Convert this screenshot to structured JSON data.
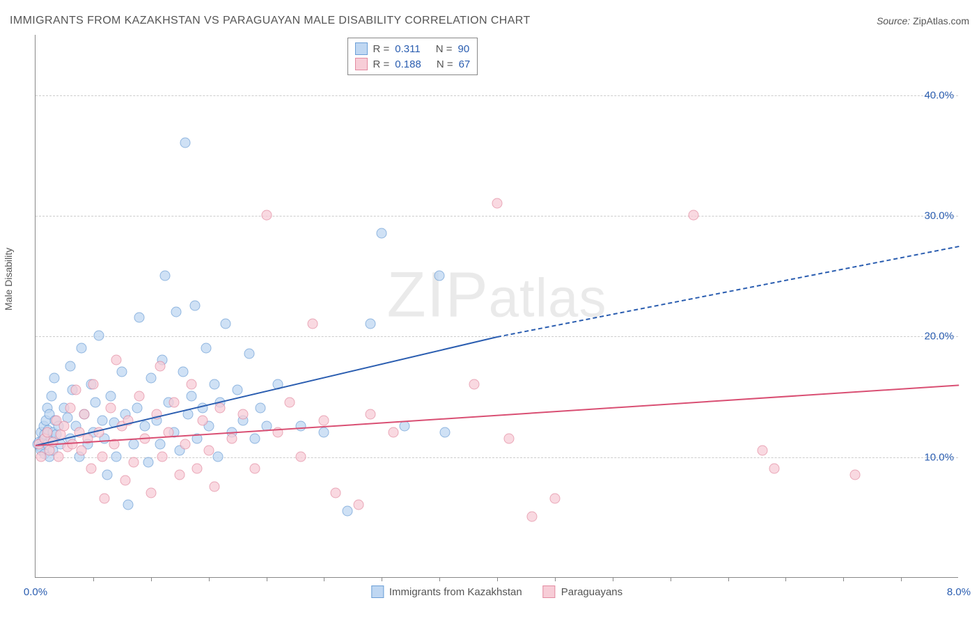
{
  "title": "IMMIGRANTS FROM KAZAKHSTAN VS PARAGUAYAN MALE DISABILITY CORRELATION CHART",
  "source_label": "Source:",
  "source_value": "ZipAtlas.com",
  "ylabel": "Male Disability",
  "watermark": "ZIPatlas",
  "chart": {
    "type": "scatter",
    "xlim": [
      0,
      8.0
    ],
    "ylim": [
      0,
      45
    ],
    "x_ticks": [
      {
        "v": 0.0,
        "label": "0.0%"
      },
      {
        "v": 8.0,
        "label": "8.0%"
      }
    ],
    "x_minor_ticks": [
      0.5,
      1.0,
      1.5,
      2.0,
      2.5,
      3.0,
      3.5,
      4.0,
      4.5,
      5.0,
      5.5,
      6.0,
      6.5,
      7.0,
      7.5
    ],
    "y_ticks": [
      {
        "v": 10,
        "label": "10.0%"
      },
      {
        "v": 20,
        "label": "20.0%"
      },
      {
        "v": 30,
        "label": "30.0%"
      },
      {
        "v": 40,
        "label": "40.0%"
      }
    ],
    "background_color": "#ffffff",
    "grid_color": "#cccccc",
    "series": [
      {
        "key": "kazakhstan",
        "label": "Immigrants from Kazakhstan",
        "fill": "#bfd7f2",
        "stroke": "#6b9ed6",
        "line_color": "#2a5db0",
        "R": "0.311",
        "N": "90",
        "trend": {
          "x1": 0.0,
          "y1": 11.0,
          "x2_solid": 4.0,
          "y2_solid": 20.0,
          "x2": 8.0,
          "y2": 27.5
        },
        "points": [
          [
            0.02,
            11.0
          ],
          [
            0.03,
            11.2
          ],
          [
            0.04,
            10.8
          ],
          [
            0.05,
            12.0
          ],
          [
            0.05,
            10.5
          ],
          [
            0.06,
            11.3
          ],
          [
            0.07,
            12.5
          ],
          [
            0.08,
            10.2
          ],
          [
            0.08,
            11.8
          ],
          [
            0.09,
            13.0
          ],
          [
            0.1,
            11.0
          ],
          [
            0.1,
            14.0
          ],
          [
            0.11,
            12.2
          ],
          [
            0.12,
            10.0
          ],
          [
            0.12,
            13.5
          ],
          [
            0.13,
            11.5
          ],
          [
            0.14,
            15.0
          ],
          [
            0.15,
            12.0
          ],
          [
            0.15,
            10.5
          ],
          [
            0.16,
            16.5
          ],
          [
            0.17,
            13.0
          ],
          [
            0.18,
            11.8
          ],
          [
            0.2,
            12.5
          ],
          [
            0.22,
            11.0
          ],
          [
            0.25,
            14.0
          ],
          [
            0.28,
            13.2
          ],
          [
            0.3,
            11.5
          ],
          [
            0.3,
            17.5
          ],
          [
            0.32,
            15.5
          ],
          [
            0.35,
            12.5
          ],
          [
            0.38,
            10.0
          ],
          [
            0.4,
            19.0
          ],
          [
            0.42,
            13.5
          ],
          [
            0.45,
            11.0
          ],
          [
            0.48,
            16.0
          ],
          [
            0.5,
            12.0
          ],
          [
            0.52,
            14.5
          ],
          [
            0.55,
            20.0
          ],
          [
            0.58,
            13.0
          ],
          [
            0.6,
            11.5
          ],
          [
            0.62,
            8.5
          ],
          [
            0.65,
            15.0
          ],
          [
            0.68,
            12.8
          ],
          [
            0.7,
            10.0
          ],
          [
            0.75,
            17.0
          ],
          [
            0.78,
            13.5
          ],
          [
            0.8,
            6.0
          ],
          [
            0.85,
            11.0
          ],
          [
            0.88,
            14.0
          ],
          [
            0.9,
            21.5
          ],
          [
            0.95,
            12.5
          ],
          [
            0.98,
            9.5
          ],
          [
            1.0,
            16.5
          ],
          [
            1.05,
            13.0
          ],
          [
            1.08,
            11.0
          ],
          [
            1.1,
            18.0
          ],
          [
            1.12,
            25.0
          ],
          [
            1.15,
            14.5
          ],
          [
            1.2,
            12.0
          ],
          [
            1.22,
            22.0
          ],
          [
            1.25,
            10.5
          ],
          [
            1.28,
            17.0
          ],
          [
            1.3,
            36.0
          ],
          [
            1.32,
            13.5
          ],
          [
            1.35,
            15.0
          ],
          [
            1.38,
            22.5
          ],
          [
            1.4,
            11.5
          ],
          [
            1.45,
            14.0
          ],
          [
            1.48,
            19.0
          ],
          [
            1.5,
            12.5
          ],
          [
            1.55,
            16.0
          ],
          [
            1.58,
            10.0
          ],
          [
            1.6,
            14.5
          ],
          [
            1.65,
            21.0
          ],
          [
            1.7,
            12.0
          ],
          [
            1.75,
            15.5
          ],
          [
            1.8,
            13.0
          ],
          [
            1.85,
            18.5
          ],
          [
            1.9,
            11.5
          ],
          [
            1.95,
            14.0
          ],
          [
            2.0,
            12.5
          ],
          [
            2.1,
            16.0
          ],
          [
            2.3,
            12.5
          ],
          [
            2.5,
            12.0
          ],
          [
            2.7,
            5.5
          ],
          [
            2.9,
            21.0
          ],
          [
            3.0,
            28.5
          ],
          [
            3.2,
            12.5
          ],
          [
            3.5,
            25.0
          ],
          [
            3.55,
            12.0
          ]
        ]
      },
      {
        "key": "paraguayans",
        "label": "Paraguayans",
        "fill": "#f7cdd7",
        "stroke": "#e38aa0",
        "line_color": "#d94f73",
        "R": "0.188",
        "N": "67",
        "trend": {
          "x1": 0.0,
          "y1": 11.0,
          "x2_solid": 8.0,
          "y2_solid": 16.0,
          "x2": 8.0,
          "y2": 16.0
        },
        "points": [
          [
            0.03,
            11.0
          ],
          [
            0.05,
            10.0
          ],
          [
            0.08,
            11.5
          ],
          [
            0.1,
            12.0
          ],
          [
            0.12,
            10.5
          ],
          [
            0.15,
            11.2
          ],
          [
            0.18,
            13.0
          ],
          [
            0.2,
            10.0
          ],
          [
            0.22,
            11.8
          ],
          [
            0.25,
            12.5
          ],
          [
            0.28,
            10.8
          ],
          [
            0.3,
            14.0
          ],
          [
            0.32,
            11.0
          ],
          [
            0.35,
            15.5
          ],
          [
            0.38,
            12.0
          ],
          [
            0.4,
            10.5
          ],
          [
            0.42,
            13.5
          ],
          [
            0.45,
            11.5
          ],
          [
            0.48,
            9.0
          ],
          [
            0.5,
            16.0
          ],
          [
            0.55,
            12.0
          ],
          [
            0.58,
            10.0
          ],
          [
            0.6,
            6.5
          ],
          [
            0.65,
            14.0
          ],
          [
            0.68,
            11.0
          ],
          [
            0.7,
            18.0
          ],
          [
            0.75,
            12.5
          ],
          [
            0.78,
            8.0
          ],
          [
            0.8,
            13.0
          ],
          [
            0.85,
            9.5
          ],
          [
            0.9,
            15.0
          ],
          [
            0.95,
            11.5
          ],
          [
            1.0,
            7.0
          ],
          [
            1.05,
            13.5
          ],
          [
            1.08,
            17.5
          ],
          [
            1.1,
            10.0
          ],
          [
            1.15,
            12.0
          ],
          [
            1.2,
            14.5
          ],
          [
            1.25,
            8.5
          ],
          [
            1.3,
            11.0
          ],
          [
            1.35,
            16.0
          ],
          [
            1.4,
            9.0
          ],
          [
            1.45,
            13.0
          ],
          [
            1.5,
            10.5
          ],
          [
            1.55,
            7.5
          ],
          [
            1.6,
            14.0
          ],
          [
            1.7,
            11.5
          ],
          [
            1.8,
            13.5
          ],
          [
            1.9,
            9.0
          ],
          [
            2.0,
            30.0
          ],
          [
            2.1,
            12.0
          ],
          [
            2.2,
            14.5
          ],
          [
            2.3,
            10.0
          ],
          [
            2.4,
            21.0
          ],
          [
            2.5,
            13.0
          ],
          [
            2.6,
            7.0
          ],
          [
            2.8,
            6.0
          ],
          [
            2.9,
            13.5
          ],
          [
            3.1,
            12.0
          ],
          [
            3.8,
            16.0
          ],
          [
            4.0,
            31.0
          ],
          [
            4.1,
            11.5
          ],
          [
            4.3,
            5.0
          ],
          [
            4.5,
            6.5
          ],
          [
            5.7,
            30.0
          ],
          [
            6.3,
            10.5
          ],
          [
            6.4,
            9.0
          ],
          [
            7.1,
            8.5
          ]
        ]
      }
    ]
  },
  "legend_top": {
    "R_label": "R  =",
    "N_label": "N  ="
  }
}
